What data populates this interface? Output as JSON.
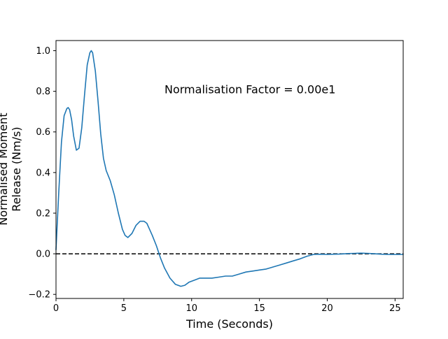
{
  "chart_data": {
    "type": "line",
    "title": "",
    "xlabel": "Time (Seconds)",
    "ylabel_lines": [
      "Normalised Moment",
      "Release (Nm/s)"
    ],
    "xlim": [
      0,
      25.6
    ],
    "ylim": [
      -0.22,
      1.05
    ],
    "x_ticks": [
      0,
      5,
      10,
      15,
      20,
      25
    ],
    "y_ticks": [
      -0.2,
      0.0,
      0.2,
      0.4,
      0.6,
      0.8,
      1.0
    ],
    "x_tick_labels": [
      "0",
      "5",
      "10",
      "15",
      "20",
      "25"
    ],
    "y_tick_labels": [
      "−0.2",
      "0.0",
      "0.2",
      "0.4",
      "0.6",
      "0.8",
      "1.0"
    ],
    "annotation": {
      "text": "Normalisation Factor = 0.00e1",
      "x": 8.0,
      "y": 0.81
    },
    "grid": false,
    "reference_line": {
      "y": 0.0,
      "style": "dashed",
      "color": "#000000"
    },
    "series": [
      {
        "color": "#1f77b4",
        "x": [
          0.0,
          0.2,
          0.4,
          0.6,
          0.8,
          0.9,
          1.0,
          1.15,
          1.3,
          1.5,
          1.7,
          1.9,
          2.1,
          2.3,
          2.5,
          2.6,
          2.7,
          2.9,
          3.1,
          3.3,
          3.5,
          3.7,
          4.0,
          4.3,
          4.6,
          4.9,
          5.1,
          5.3,
          5.6,
          5.9,
          6.2,
          6.5,
          6.7,
          6.9,
          7.1,
          7.4,
          7.7,
          8.0,
          8.4,
          8.8,
          9.2,
          9.5,
          9.8,
          10.2,
          10.6,
          11.0,
          11.5,
          12.0,
          12.5,
          13.0,
          13.5,
          14.0,
          14.5,
          15.0,
          15.5,
          16.0,
          16.5,
          17.0,
          17.5,
          18.0,
          18.5,
          19.0,
          19.5,
          20.0,
          20.5,
          21.0,
          21.5,
          22.0,
          22.5,
          23.0,
          23.5,
          24.0,
          24.5,
          25.0,
          25.6
        ],
        "y": [
          0.02,
          0.3,
          0.55,
          0.68,
          0.715,
          0.72,
          0.71,
          0.66,
          0.58,
          0.51,
          0.52,
          0.62,
          0.78,
          0.93,
          0.99,
          1.0,
          0.99,
          0.9,
          0.75,
          0.59,
          0.47,
          0.41,
          0.36,
          0.29,
          0.2,
          0.12,
          0.09,
          0.08,
          0.1,
          0.14,
          0.16,
          0.16,
          0.15,
          0.12,
          0.09,
          0.04,
          -0.02,
          -0.07,
          -0.12,
          -0.15,
          -0.16,
          -0.155,
          -0.14,
          -0.13,
          -0.12,
          -0.12,
          -0.12,
          -0.115,
          -0.11,
          -0.11,
          -0.1,
          -0.09,
          -0.085,
          -0.08,
          -0.075,
          -0.065,
          -0.055,
          -0.045,
          -0.035,
          -0.025,
          -0.012,
          -0.003,
          -0.002,
          -0.003,
          -0.002,
          -0.001,
          0.001,
          0.002,
          0.003,
          0.002,
          0.0,
          -0.002,
          -0.003,
          -0.003,
          -0.003
        ]
      }
    ]
  }
}
